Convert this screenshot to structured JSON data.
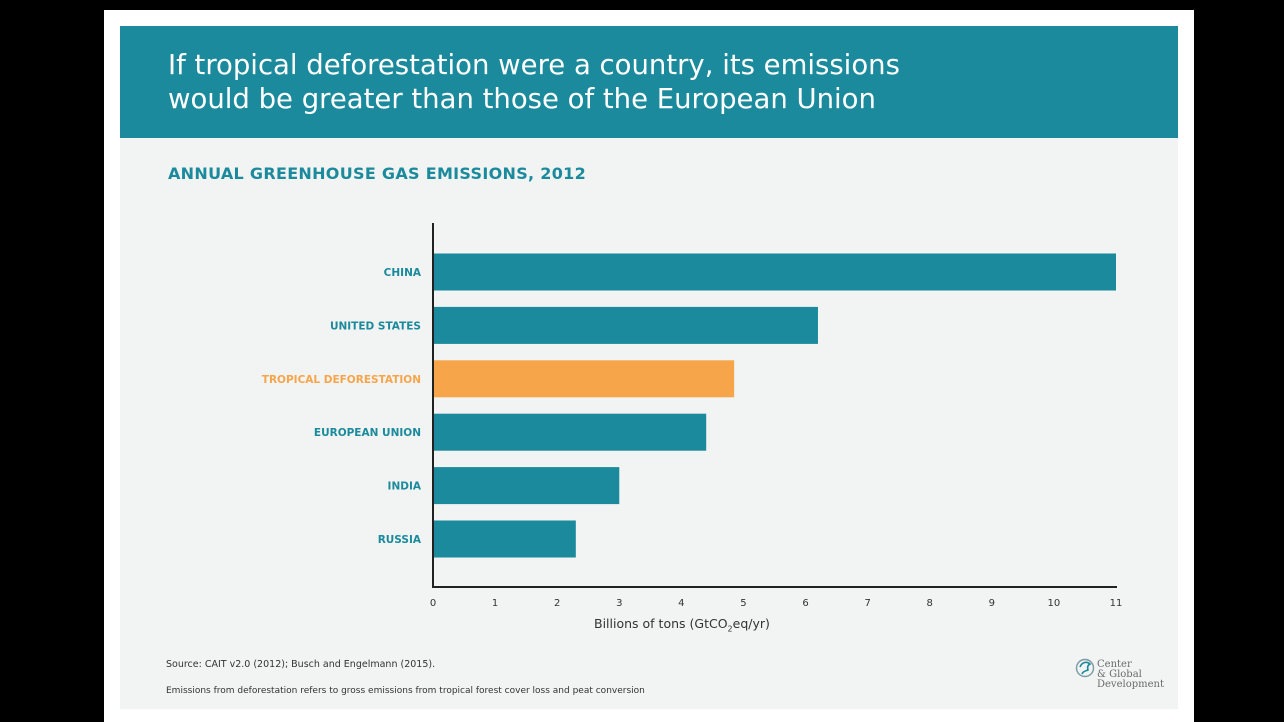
{
  "header": {
    "title": "If tropical deforestation were a country, its emissions\nwould be greater than those of the European Union"
  },
  "colors": {
    "teal": "#1a8a9c",
    "orange": "#f7a54a",
    "panel": "#f2f3f3"
  },
  "chart_data": {
    "type": "bar",
    "orientation": "horizontal",
    "title": "ANNUAL GREENHOUSE GAS EMISSIONS, 2012",
    "categories": [
      "CHINA",
      "UNITED STATES",
      "TROPICAL DEFORESTATION",
      "EUROPEAN UNION",
      "INDIA",
      "RUSSIA"
    ],
    "values": [
      11.0,
      6.2,
      4.85,
      4.4,
      3.0,
      2.3
    ],
    "highlight": "TROPICAL DEFORESTATION",
    "xlabel_prefix": "Billions of tons (GtCO",
    "xlabel_sub": "2",
    "xlabel_suffix": "eq/yr)",
    "xlim": [
      0,
      11
    ],
    "xticks": [
      "0",
      "1",
      "2",
      "3",
      "4",
      "5",
      "6",
      "7",
      "8",
      "9",
      "10",
      "11"
    ],
    "grid": false
  },
  "notes": {
    "source": "Source:  CAIT v2.0 (2012); Busch and Engelmann (2015).",
    "definition": "Emissions from deforestation refers to gross emissions from tropical forest cover loss and peat conversion"
  },
  "logo": {
    "text": "Center\n& Global\nDevelopment"
  }
}
